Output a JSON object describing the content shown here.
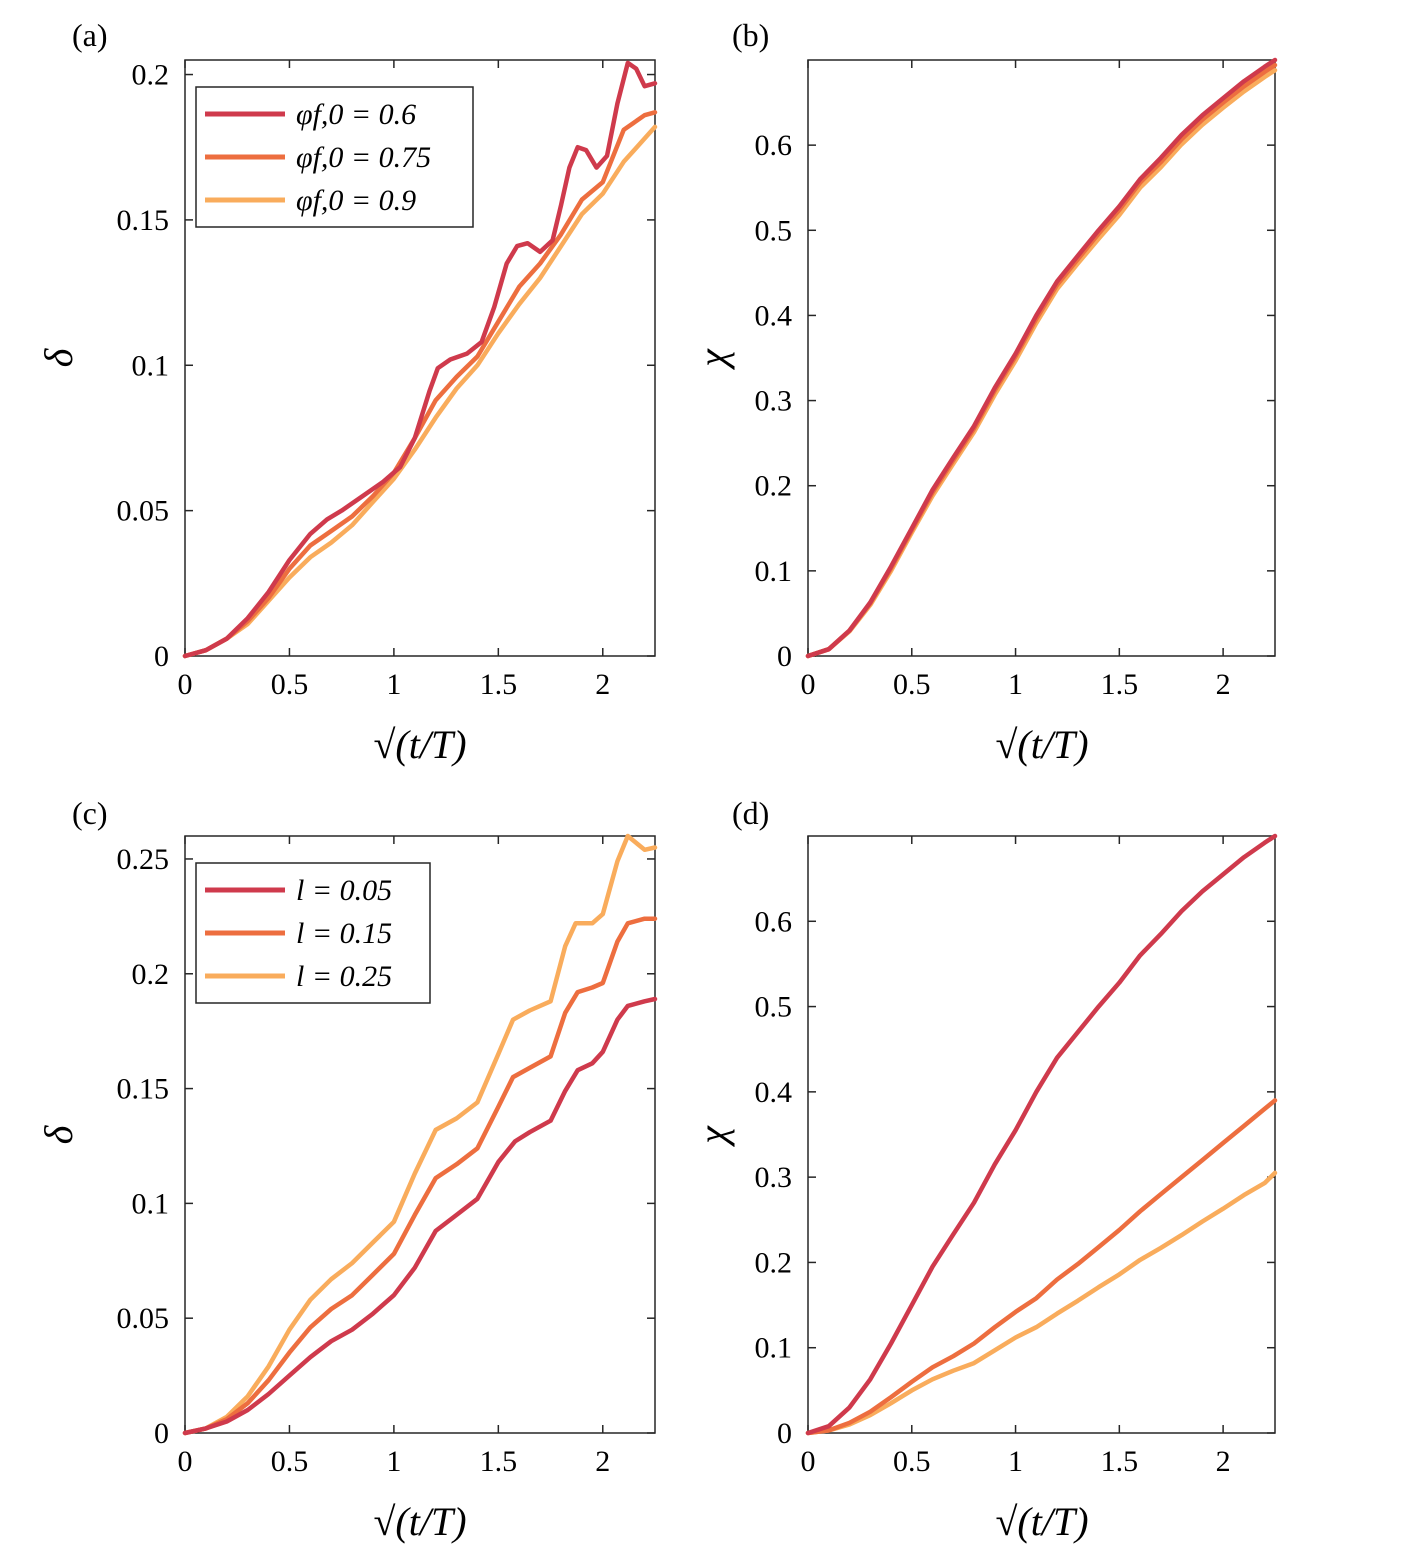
{
  "chart_data": [
    {
      "panel": "(a)",
      "type": "line",
      "xlabel": "√(t/T)",
      "ylabel": "δ",
      "xlim": [
        0,
        2.25
      ],
      "ylim": [
        0,
        0.205
      ],
      "xticks": [
        0,
        0.5,
        1,
        1.5,
        2
      ],
      "xtick_labels": [
        "0",
        "0.5",
        "1",
        "1.5",
        "2"
      ],
      "yticks": [
        0,
        0.05,
        0.1,
        0.15,
        0.2
      ],
      "ytick_labels": [
        "0",
        "0.05",
        "0.1",
        "0.15",
        "0.2"
      ],
      "legend_position": "top-left",
      "series": [
        {
          "name": "φf,0 = 0.6",
          "color": "#cf3a4c",
          "x": [
            0,
            0.1,
            0.2,
            0.3,
            0.4,
            0.5,
            0.6,
            0.68,
            0.75,
            0.85,
            0.95,
            1.03,
            1.1,
            1.17,
            1.21,
            1.27,
            1.35,
            1.42,
            1.48,
            1.54,
            1.59,
            1.64,
            1.7,
            1.76,
            1.8,
            1.84,
            1.88,
            1.92,
            1.97,
            2.02,
            2.07,
            2.12,
            2.16,
            2.2,
            2.25
          ],
          "y": [
            0,
            0.002,
            0.006,
            0.013,
            0.022,
            0.033,
            0.042,
            0.047,
            0.05,
            0.055,
            0.06,
            0.065,
            0.075,
            0.091,
            0.099,
            0.102,
            0.104,
            0.108,
            0.12,
            0.135,
            0.141,
            0.142,
            0.139,
            0.143,
            0.155,
            0.168,
            0.175,
            0.174,
            0.168,
            0.172,
            0.19,
            0.204,
            0.202,
            0.196,
            0.197
          ]
        },
        {
          "name": "φf,0 = 0.75",
          "color": "#ed6e3f",
          "x": [
            0,
            0.1,
            0.2,
            0.3,
            0.4,
            0.5,
            0.6,
            0.7,
            0.8,
            0.9,
            1.0,
            1.1,
            1.2,
            1.3,
            1.4,
            1.5,
            1.6,
            1.7,
            1.8,
            1.9,
            2.0,
            2.1,
            2.2,
            2.25
          ],
          "y": [
            0,
            0.002,
            0.006,
            0.012,
            0.02,
            0.03,
            0.038,
            0.043,
            0.048,
            0.055,
            0.063,
            0.075,
            0.088,
            0.096,
            0.103,
            0.115,
            0.127,
            0.135,
            0.145,
            0.157,
            0.163,
            0.181,
            0.186,
            0.187
          ]
        },
        {
          "name": "φf,0 = 0.9",
          "color": "#f9ac5c",
          "x": [
            0,
            0.1,
            0.2,
            0.3,
            0.4,
            0.5,
            0.6,
            0.7,
            0.8,
            0.9,
            1.0,
            1.1,
            1.2,
            1.3,
            1.4,
            1.5,
            1.6,
            1.7,
            1.8,
            1.9,
            2.0,
            2.1,
            2.2,
            2.25
          ],
          "y": [
            0,
            0.002,
            0.006,
            0.011,
            0.019,
            0.027,
            0.034,
            0.039,
            0.045,
            0.053,
            0.061,
            0.071,
            0.082,
            0.092,
            0.1,
            0.111,
            0.121,
            0.13,
            0.141,
            0.152,
            0.159,
            0.17,
            0.178,
            0.182
          ]
        }
      ]
    },
    {
      "panel": "(b)",
      "type": "line",
      "xlabel": "√(t/T)",
      "ylabel": "χ",
      "xlim": [
        0,
        2.25
      ],
      "ylim": [
        0,
        0.7
      ],
      "xticks": [
        0,
        0.5,
        1,
        1.5,
        2
      ],
      "xtick_labels": [
        "0",
        "0.5",
        "1",
        "1.5",
        "2"
      ],
      "yticks": [
        0,
        0.1,
        0.2,
        0.3,
        0.4,
        0.5,
        0.6
      ],
      "ytick_labels": [
        "0",
        "0.1",
        "0.2",
        "0.3",
        "0.4",
        "0.5",
        "0.6"
      ],
      "series": [
        {
          "name": "φf,0 = 0.6",
          "color": "#cf3a4c",
          "x": [
            0,
            0.1,
            0.2,
            0.3,
            0.4,
            0.5,
            0.6,
            0.7,
            0.8,
            0.9,
            1.0,
            1.1,
            1.2,
            1.3,
            1.4,
            1.5,
            1.6,
            1.7,
            1.8,
            1.9,
            2.0,
            2.1,
            2.2,
            2.25
          ],
          "y": [
            0,
            0.008,
            0.03,
            0.063,
            0.105,
            0.15,
            0.195,
            0.233,
            0.27,
            0.315,
            0.355,
            0.4,
            0.44,
            0.47,
            0.5,
            0.528,
            0.56,
            0.585,
            0.612,
            0.635,
            0.655,
            0.675,
            0.692,
            0.7
          ]
        },
        {
          "name": "φf,0 = 0.75",
          "color": "#ed6e3f",
          "x": [
            0,
            0.1,
            0.2,
            0.3,
            0.4,
            0.5,
            0.6,
            0.7,
            0.8,
            0.9,
            1.0,
            1.1,
            1.2,
            1.3,
            1.4,
            1.5,
            1.6,
            1.7,
            1.8,
            1.9,
            2.0,
            2.1,
            2.2,
            2.25
          ],
          "y": [
            0,
            0.008,
            0.03,
            0.062,
            0.103,
            0.148,
            0.192,
            0.23,
            0.267,
            0.312,
            0.352,
            0.396,
            0.436,
            0.466,
            0.496,
            0.524,
            0.556,
            0.58,
            0.607,
            0.63,
            0.65,
            0.669,
            0.686,
            0.694
          ]
        },
        {
          "name": "φf,0 = 0.9",
          "color": "#f9ac5c",
          "x": [
            0,
            0.1,
            0.2,
            0.3,
            0.4,
            0.5,
            0.6,
            0.7,
            0.8,
            0.9,
            1.0,
            1.1,
            1.2,
            1.3,
            1.4,
            1.5,
            1.6,
            1.7,
            1.8,
            1.9,
            2.0,
            2.1,
            2.2,
            2.25
          ],
          "y": [
            0,
            0.008,
            0.029,
            0.06,
            0.1,
            0.145,
            0.188,
            0.226,
            0.263,
            0.307,
            0.347,
            0.391,
            0.431,
            0.461,
            0.49,
            0.518,
            0.55,
            0.574,
            0.601,
            0.624,
            0.644,
            0.663,
            0.68,
            0.688
          ]
        }
      ]
    },
    {
      "panel": "(c)",
      "type": "line",
      "xlabel": "√(t/T)",
      "ylabel": "δ",
      "xlim": [
        0,
        2.25
      ],
      "ylim": [
        0,
        0.26
      ],
      "xticks": [
        0,
        0.5,
        1,
        1.5,
        2
      ],
      "xtick_labels": [
        "0",
        "0.5",
        "1",
        "1.5",
        "2"
      ],
      "yticks": [
        0,
        0.05,
        0.1,
        0.15,
        0.2,
        0.25
      ],
      "ytick_labels": [
        "0",
        "0.05",
        "0.1",
        "0.15",
        "0.2",
        "0.25"
      ],
      "legend_position": "top-left",
      "series": [
        {
          "name": "l = 0.05",
          "color": "#cf3a4c",
          "x": [
            0,
            0.1,
            0.2,
            0.3,
            0.4,
            0.5,
            0.6,
            0.7,
            0.8,
            0.9,
            1.0,
            1.1,
            1.2,
            1.3,
            1.4,
            1.5,
            1.58,
            1.65,
            1.75,
            1.82,
            1.88,
            1.95,
            2.0,
            2.07,
            2.12,
            2.2,
            2.25
          ],
          "y": [
            0,
            0.002,
            0.005,
            0.01,
            0.017,
            0.025,
            0.033,
            0.04,
            0.045,
            0.052,
            0.06,
            0.072,
            0.088,
            0.095,
            0.102,
            0.118,
            0.127,
            0.131,
            0.136,
            0.149,
            0.158,
            0.161,
            0.166,
            0.18,
            0.186,
            0.188,
            0.189
          ]
        },
        {
          "name": "l = 0.15",
          "color": "#ed6e3f",
          "x": [
            0,
            0.1,
            0.2,
            0.3,
            0.4,
            0.5,
            0.6,
            0.7,
            0.8,
            0.9,
            1.0,
            1.1,
            1.2,
            1.3,
            1.4,
            1.5,
            1.57,
            1.65,
            1.75,
            1.82,
            1.88,
            1.95,
            2.0,
            2.07,
            2.12,
            2.2,
            2.25
          ],
          "y": [
            0,
            0.002,
            0.006,
            0.013,
            0.023,
            0.035,
            0.046,
            0.054,
            0.06,
            0.069,
            0.078,
            0.095,
            0.111,
            0.117,
            0.124,
            0.142,
            0.155,
            0.159,
            0.164,
            0.183,
            0.192,
            0.194,
            0.196,
            0.214,
            0.222,
            0.224,
            0.224
          ]
        },
        {
          "name": "l = 0.25",
          "color": "#f9ac5c",
          "x": [
            0,
            0.1,
            0.2,
            0.3,
            0.4,
            0.5,
            0.6,
            0.7,
            0.8,
            0.9,
            1.0,
            1.1,
            1.2,
            1.3,
            1.4,
            1.5,
            1.57,
            1.65,
            1.75,
            1.82,
            1.87,
            1.95,
            2.0,
            2.07,
            2.12,
            2.2,
            2.25
          ],
          "y": [
            0,
            0.002,
            0.007,
            0.016,
            0.029,
            0.045,
            0.058,
            0.067,
            0.074,
            0.083,
            0.092,
            0.113,
            0.132,
            0.137,
            0.144,
            0.165,
            0.18,
            0.184,
            0.188,
            0.212,
            0.222,
            0.222,
            0.226,
            0.249,
            0.26,
            0.254,
            0.255
          ]
        }
      ]
    },
    {
      "panel": "(d)",
      "type": "line",
      "xlabel": "√(t/T)",
      "ylabel": "χ",
      "xlim": [
        0,
        2.25
      ],
      "ylim": [
        0,
        0.7
      ],
      "xticks": [
        0,
        0.5,
        1,
        1.5,
        2
      ],
      "xtick_labels": [
        "0",
        "0.5",
        "1",
        "1.5",
        "2"
      ],
      "yticks": [
        0,
        0.1,
        0.2,
        0.3,
        0.4,
        0.5,
        0.6
      ],
      "ytick_labels": [
        "0",
        "0.1",
        "0.2",
        "0.3",
        "0.4",
        "0.5",
        "0.6"
      ],
      "series": [
        {
          "name": "l = 0.05",
          "color": "#cf3a4c",
          "x": [
            0,
            0.1,
            0.2,
            0.3,
            0.4,
            0.5,
            0.6,
            0.7,
            0.8,
            0.9,
            1.0,
            1.1,
            1.2,
            1.3,
            1.4,
            1.5,
            1.6,
            1.7,
            1.8,
            1.9,
            2.0,
            2.1,
            2.2,
            2.25
          ],
          "y": [
            0,
            0.008,
            0.03,
            0.063,
            0.105,
            0.15,
            0.195,
            0.233,
            0.27,
            0.315,
            0.355,
            0.4,
            0.44,
            0.47,
            0.5,
            0.528,
            0.56,
            0.585,
            0.612,
            0.635,
            0.655,
            0.675,
            0.692,
            0.7
          ]
        },
        {
          "name": "l = 0.15",
          "color": "#ed6e3f",
          "x": [
            0,
            0.1,
            0.2,
            0.3,
            0.4,
            0.5,
            0.6,
            0.7,
            0.8,
            0.9,
            1.0,
            1.1,
            1.2,
            1.3,
            1.4,
            1.5,
            1.6,
            1.7,
            1.8,
            1.9,
            2.0,
            2.1,
            2.2,
            2.25
          ],
          "y": [
            0,
            0.003,
            0.012,
            0.025,
            0.042,
            0.06,
            0.077,
            0.09,
            0.105,
            0.124,
            0.142,
            0.158,
            0.18,
            0.198,
            0.218,
            0.238,
            0.26,
            0.28,
            0.3,
            0.32,
            0.34,
            0.36,
            0.38,
            0.39
          ]
        },
        {
          "name": "l = 0.25",
          "color": "#f9ac5c",
          "x": [
            0,
            0.1,
            0.2,
            0.3,
            0.4,
            0.5,
            0.6,
            0.7,
            0.8,
            0.9,
            1.0,
            1.1,
            1.2,
            1.3,
            1.4,
            1.5,
            1.6,
            1.7,
            1.8,
            1.9,
            2.0,
            2.1,
            2.2,
            2.25
          ],
          "y": [
            0,
            0.003,
            0.01,
            0.021,
            0.035,
            0.05,
            0.063,
            0.073,
            0.082,
            0.097,
            0.112,
            0.124,
            0.14,
            0.155,
            0.171,
            0.186,
            0.203,
            0.217,
            0.232,
            0.248,
            0.263,
            0.279,
            0.293,
            0.305
          ]
        }
      ]
    }
  ]
}
